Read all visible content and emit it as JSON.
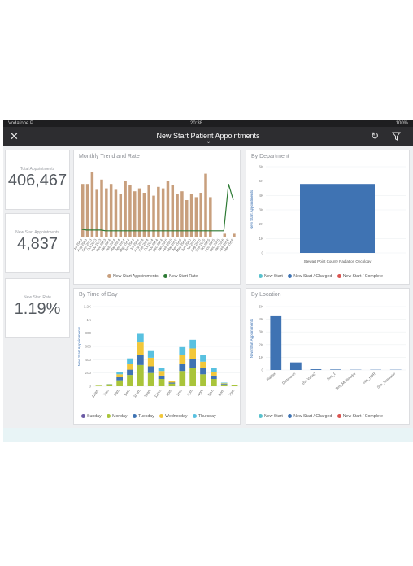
{
  "status_bar": {
    "carrier": "Vodafone P",
    "time": "20:38",
    "battery": "100%"
  },
  "header": {
    "title": "New Start Patient Appointments",
    "close_icon": "close-icon",
    "refresh_icon": "refresh-icon",
    "filter_icon": "filter-icon"
  },
  "kpis": [
    {
      "label": "Total Appointments",
      "value": "406,467"
    },
    {
      "label": "New Start Appointments",
      "value": "4,837"
    },
    {
      "label": "New Start Rate",
      "value": "1.19%"
    }
  ],
  "panels": {
    "trend": {
      "title": "Monthly Trend and Rate",
      "legend": [
        "New Start Appointments",
        "New Start Rate"
      ]
    },
    "department": {
      "title": "By Department",
      "legend": [
        "New Start",
        "New Start / Charged",
        "New Start / Complete"
      ]
    },
    "time_of_day": {
      "title": "By Time of Day",
      "legend": [
        "Sunday",
        "Monday",
        "Tuesday",
        "Wednesday",
        "Thursday"
      ]
    },
    "location": {
      "title": "By Location",
      "legend": [
        "New Start",
        "New Start / Charged",
        "New Start / Complete"
      ]
    }
  },
  "colors": {
    "tan": "#c89f7d",
    "green": "#2d7a34",
    "blue": "#3f73b3",
    "teal": "#59c1cd",
    "red": "#d9534f",
    "purple": "#6b5aa5",
    "lime": "#a9c43a",
    "yellow": "#f2c73a",
    "cyan": "#59c1e0"
  },
  "chart_data": [
    {
      "type": "bar",
      "title": "Monthly Trend and Rate",
      "categories": [
        "Jul 2013",
        "Aug 2013",
        "Sep 2013",
        "Oct 2013",
        "Nov 2013",
        "Dec 2013",
        "Jan 2014",
        "Feb 2014",
        "Mar 2014",
        "Apr 2014",
        "May 2014",
        "Jun 2014",
        "Jul 2014",
        "Aug 2014",
        "Sep 2014",
        "Oct 2014",
        "Nov 2014",
        "Dec 2014",
        "Jan 2015",
        "Feb 2015",
        "Mar 2015",
        "Apr 2015",
        "May 2015",
        "Jun 2015",
        "Jul 2015",
        "Aug 2015",
        "Sep 2015",
        "Oct 2015",
        "Nov 2015",
        "Dec 2015",
        "Jan 2016",
        "Feb 2016",
        "Mar 2016"
      ],
      "series": [
        {
          "name": "New Start Appointments",
          "values": [
            72,
            72,
            88,
            64,
            78,
            66,
            72,
            64,
            58,
            76,
            70,
            62,
            66,
            60,
            70,
            56,
            68,
            66,
            76,
            70,
            58,
            62,
            50,
            58,
            54,
            60,
            86,
            54,
            0,
            0,
            4,
            0,
            4
          ]
        },
        {
          "name": "New Start Rate",
          "values": [
            10,
            9,
            9,
            9,
            9,
            8,
            8,
            8,
            8,
            8,
            8,
            8,
            8,
            8,
            8,
            8,
            8,
            8,
            8,
            8,
            8,
            8,
            8,
            8,
            8,
            8,
            8,
            8,
            8,
            8,
            8,
            72,
            50
          ]
        }
      ]
    },
    {
      "type": "bar",
      "title": "By Department",
      "ylabel": "New Start Appointments",
      "categories": [
        "Stewart Point County Radiation Oncology"
      ],
      "series": [
        {
          "name": "New Start",
          "values": [
            4800
          ]
        }
      ],
      "yticks": [
        "0",
        "1K",
        "2K",
        "3K",
        "4K",
        "5K",
        "6K"
      ],
      "ylim": [
        0,
        6000
      ]
    },
    {
      "type": "bar",
      "title": "By Time of Day",
      "ylabel": "New Start Appointments",
      "categories": [
        "12am",
        "7am",
        "8am",
        "9am",
        "10am",
        "11am",
        "12pm",
        "1pm",
        "2pm",
        "3pm",
        "4pm",
        "5pm",
        "6pm",
        "7pm"
      ],
      "series": [
        {
          "name": "Sunday",
          "values": [
            0,
            0,
            0,
            0,
            0,
            0,
            0,
            0,
            0,
            0,
            0,
            0,
            0,
            0
          ]
        },
        {
          "name": "Monday",
          "values": [
            8,
            20,
            90,
            170,
            320,
            200,
            110,
            40,
            230,
            280,
            180,
            110,
            25,
            15
          ]
        },
        {
          "name": "Tuesday",
          "values": [
            0,
            5,
            45,
            80,
            150,
            100,
            50,
            15,
            110,
            130,
            90,
            50,
            10,
            0
          ]
        },
        {
          "name": "Wednesday",
          "values": [
            0,
            5,
            45,
            90,
            190,
            130,
            70,
            20,
            130,
            160,
            100,
            60,
            10,
            0
          ]
        },
        {
          "name": "Thursday",
          "values": [
            0,
            5,
            40,
            80,
            130,
            100,
            50,
            5,
            120,
            130,
            100,
            60,
            10,
            0
          ]
        }
      ],
      "yticks": [
        "0",
        "200",
        "400",
        "600",
        "800",
        "1K",
        "1.2K"
      ],
      "ylim": [
        0,
        1200
      ]
    },
    {
      "type": "bar",
      "title": "By Location",
      "ylabel": "New Start Appointments",
      "categories": [
        "Halifax",
        "Dartmouth",
        "(No Value)",
        "Sim_1",
        "Sim_Multimodal",
        "Sim_HDR",
        "Sim_Simulator"
      ],
      "series": [
        {
          "name": "New Start",
          "values": [
            4300,
            600,
            60,
            40,
            20,
            20,
            20
          ]
        }
      ],
      "yticks": [
        "0",
        "1K",
        "2K",
        "3K",
        "4K",
        "5K"
      ],
      "ylim": [
        0,
        5000
      ]
    }
  ]
}
